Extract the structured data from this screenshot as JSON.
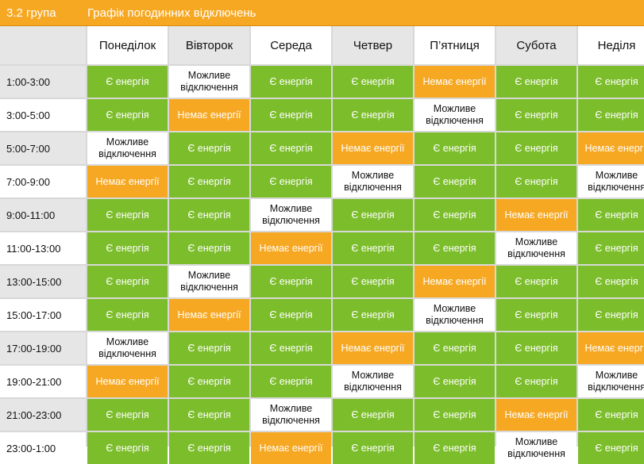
{
  "header": {
    "group": "3.2 група",
    "title": "Графік погодинних відключень"
  },
  "days": [
    "Понеділок",
    "Вівторок",
    "Середа",
    "Четвер",
    "П’ятниця",
    "Субота",
    "Неділя"
  ],
  "legend": {
    "on": "Є енергія",
    "off": "Немає енергії",
    "maybe": "Можливе відключення"
  },
  "colors": {
    "on": "#7cbd2b",
    "off": "#f7a823",
    "maybe": "#ffffff"
  },
  "rows": [
    {
      "time": "1:00-3:00",
      "cells": [
        "on",
        "maybe",
        "on",
        "on",
        "off",
        "on",
        "on"
      ]
    },
    {
      "time": "3:00-5:00",
      "cells": [
        "on",
        "off",
        "on",
        "on",
        "maybe",
        "on",
        "on"
      ]
    },
    {
      "time": "5:00-7:00",
      "cells": [
        "maybe",
        "on",
        "on",
        "off",
        "on",
        "on",
        "off"
      ]
    },
    {
      "time": "7:00-9:00",
      "cells": [
        "off",
        "on",
        "on",
        "maybe",
        "on",
        "on",
        "maybe"
      ]
    },
    {
      "time": "9:00-11:00",
      "cells": [
        "on",
        "on",
        "maybe",
        "on",
        "on",
        "off",
        "on"
      ]
    },
    {
      "time": "11:00-13:00",
      "cells": [
        "on",
        "on",
        "off",
        "on",
        "on",
        "maybe",
        "on"
      ]
    },
    {
      "time": "13:00-15:00",
      "cells": [
        "on",
        "maybe",
        "on",
        "on",
        "off",
        "on",
        "on"
      ]
    },
    {
      "time": "15:00-17:00",
      "cells": [
        "on",
        "off",
        "on",
        "on",
        "maybe",
        "on",
        "on"
      ]
    },
    {
      "time": "17:00-19:00",
      "cells": [
        "maybe",
        "on",
        "on",
        "off",
        "on",
        "on",
        "off"
      ]
    },
    {
      "time": "19:00-21:00",
      "cells": [
        "off",
        "on",
        "on",
        "maybe",
        "on",
        "on",
        "maybe"
      ]
    },
    {
      "time": "21:00-23:00",
      "cells": [
        "on",
        "on",
        "maybe",
        "on",
        "on",
        "off",
        "on"
      ]
    },
    {
      "time": "23:00-1:00",
      "cells": [
        "on",
        "on",
        "off",
        "on",
        "on",
        "maybe",
        "on"
      ]
    }
  ]
}
